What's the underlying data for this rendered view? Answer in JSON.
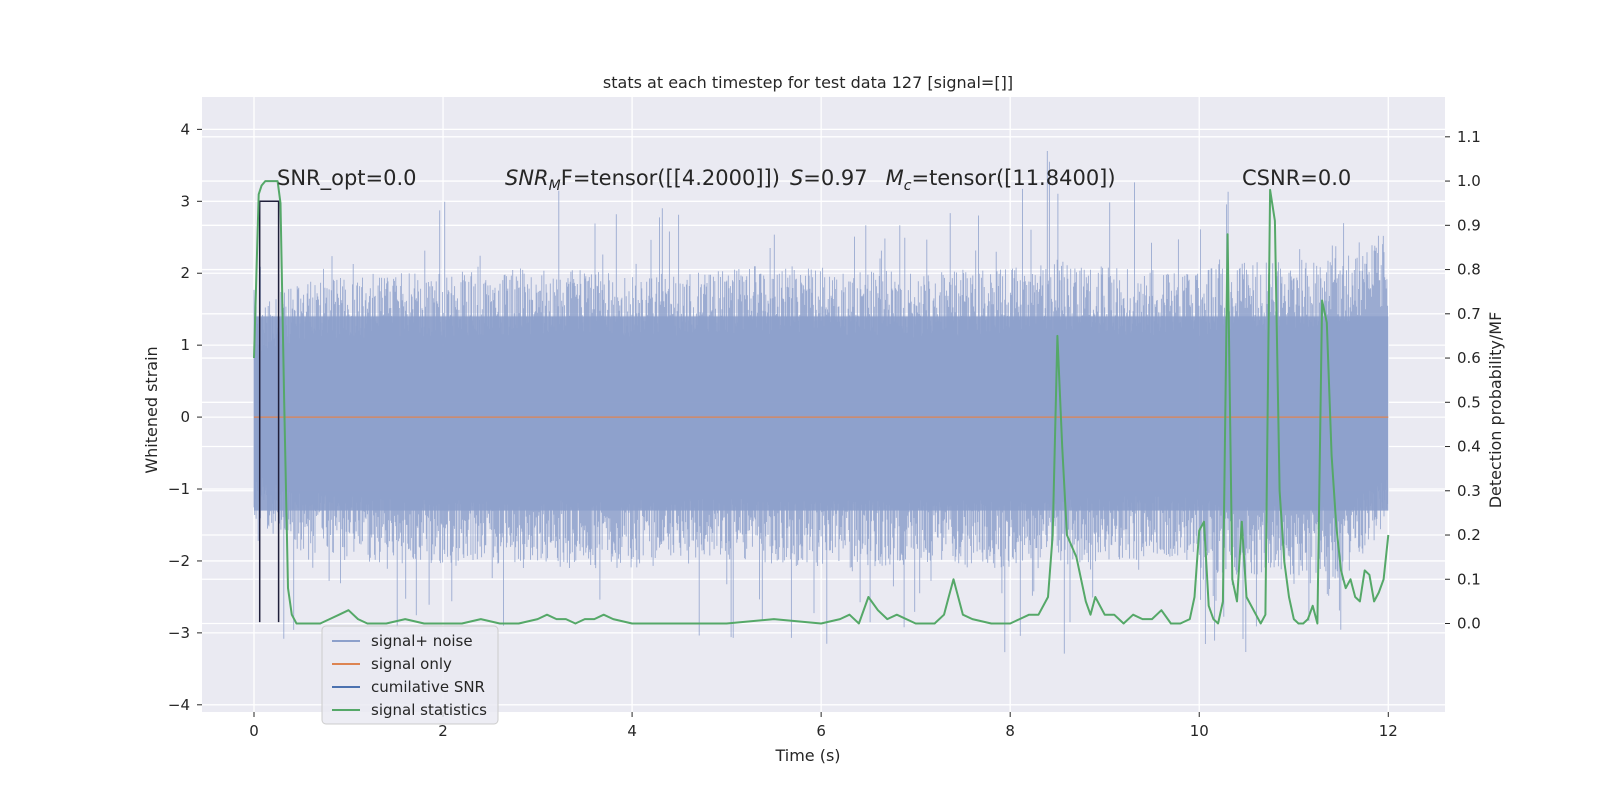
{
  "chart_data": {
    "type": "line",
    "title": "stats at each timestep for test data 127 [signal=[]]",
    "xlabel": "Time (s)",
    "ylabel_left": "Whitened strain",
    "ylabel_right": "Detection probability/MF",
    "xlim": [
      -0.55,
      12.6
    ],
    "ylim_left": [
      -4.1,
      4.45
    ],
    "ylim_right": [
      -0.2,
      1.19
    ],
    "xticks": [
      0,
      2,
      4,
      6,
      8,
      10,
      12
    ],
    "xtick_labels": [
      "0",
      "2",
      "4",
      "6",
      "8",
      "10",
      "12"
    ],
    "yticks_left": [
      -4,
      -3,
      -2,
      -1,
      0,
      1,
      2,
      3,
      4
    ],
    "ytick_labels_left": [
      "−4",
      "−3",
      "−2",
      "−1",
      "0",
      "1",
      "2",
      "3",
      "4"
    ],
    "yticks_right": [
      0.0,
      0.1,
      0.2,
      0.3,
      0.4,
      0.5,
      0.6,
      0.7,
      0.8,
      0.9,
      1.0,
      1.1
    ],
    "ytick_labels_right": [
      "0.0",
      "0.1",
      "0.2",
      "0.3",
      "0.4",
      "0.5",
      "0.6",
      "0.7",
      "0.8",
      "0.9",
      "1.0",
      "1.1"
    ],
    "grid": true,
    "legend_position": "lower-left",
    "annotations": {
      "snr_opt": "SNR_opt=0.0",
      "snr_mf_prefix": "SNR",
      "snr_mf_sub": "M",
      "snr_mf_rest": "F=tensor([[4.2000]])",
      "s_label": "S",
      "s_value": "=0.97",
      "mc_label": "M",
      "mc_sub": "c",
      "mc_value": "=tensor([11.8400])",
      "csnr": "CSNR=0.0"
    },
    "colors": {
      "background": "#eaeaf2",
      "grid": "#ffffff",
      "noise": "#8da0cb",
      "signal_only": "#dd8452",
      "cumulative_snr": "#1f1f3a",
      "signal_statistics": "#55a868"
    },
    "series": [
      {
        "name": "signal+ noise",
        "axis": "left",
        "envelope": {
          "t": [
            0,
            0.3,
            1,
            2,
            3,
            4,
            5,
            6,
            7,
            8,
            8.5,
            9,
            10,
            10.2,
            11,
            11.5,
            12
          ],
          "typical_upper": [
            1.6,
            1.8,
            2.0,
            2.0,
            2.1,
            2.0,
            2.1,
            2.1,
            2.0,
            2.1,
            2.2,
            2.1,
            2.0,
            2.2,
            2.2,
            2.3,
            2.6
          ],
          "typical_lower": [
            -1.4,
            -1.8,
            -2.0,
            -2.1,
            -2.1,
            -2.1,
            -2.0,
            -2.1,
            -2.1,
            -2.1,
            -2.1,
            -2.0,
            -2.0,
            -2.2,
            -2.2,
            -2.3,
            -1.5
          ],
          "max": [
            1.8,
            4.1,
            3.2,
            3.0,
            3.2,
            3.0,
            2.9,
            3.0,
            3.0,
            2.9,
            3.95,
            3.0,
            4.0,
            3.2,
            3.2,
            3.1,
            2.9
          ],
          "min": [
            -2.1,
            -3.3,
            -3.0,
            -3.0,
            -3.1,
            -3.4,
            -3.1,
            -3.2,
            -3.3,
            -3.3,
            -3.7,
            -3.1,
            -3.2,
            -3.3,
            -3.3,
            -3.1,
            -2.5
          ]
        },
        "fill_band": [
          -1.3,
          1.4
        ]
      },
      {
        "name": "signal only",
        "axis": "left",
        "x": [
          0,
          12
        ],
        "y": [
          0,
          0
        ]
      },
      {
        "name": "cumilative SNR",
        "axis": "left",
        "x": [
          0.06,
          0.06,
          0.26,
          0.26
        ],
        "y": [
          -2.85,
          3.0,
          3.0,
          -2.85
        ]
      },
      {
        "name": "signal statistics",
        "axis": "right",
        "x": [
          0.0,
          0.05,
          0.08,
          0.12,
          0.15,
          0.2,
          0.25,
          0.28,
          0.32,
          0.36,
          0.4,
          0.45,
          0.5,
          0.6,
          0.7,
          0.8,
          0.9,
          1.0,
          1.1,
          1.2,
          1.4,
          1.6,
          1.8,
          2.0,
          2.2,
          2.4,
          2.6,
          2.8,
          3.0,
          3.1,
          3.2,
          3.3,
          3.4,
          3.5,
          3.6,
          3.7,
          3.8,
          4.0,
          4.5,
          5.0,
          5.5,
          6.0,
          6.2,
          6.3,
          6.4,
          6.5,
          6.6,
          6.7,
          6.8,
          7.0,
          7.2,
          7.3,
          7.35,
          7.4,
          7.45,
          7.5,
          7.6,
          7.8,
          8.0,
          8.1,
          8.2,
          8.3,
          8.4,
          8.45,
          8.5,
          8.55,
          8.6,
          8.7,
          8.75,
          8.8,
          8.85,
          8.9,
          9.0,
          9.1,
          9.2,
          9.3,
          9.4,
          9.5,
          9.6,
          9.7,
          9.8,
          9.9,
          9.95,
          10.0,
          10.05,
          10.1,
          10.15,
          10.2,
          10.25,
          10.3,
          10.35,
          10.4,
          10.45,
          10.5,
          10.6,
          10.65,
          10.7,
          10.75,
          10.8,
          10.85,
          10.9,
          10.95,
          11.0,
          11.05,
          11.1,
          11.15,
          11.2,
          11.25,
          11.3,
          11.35,
          11.4,
          11.45,
          11.5,
          11.55,
          11.6,
          11.65,
          11.7,
          11.75,
          11.8,
          11.85,
          11.9,
          11.95,
          12.0
        ],
        "y": [
          0.6,
          0.97,
          0.99,
          1.0,
          1.0,
          1.0,
          1.0,
          0.95,
          0.5,
          0.08,
          0.02,
          0.0,
          0.0,
          0.0,
          0.0,
          0.01,
          0.02,
          0.03,
          0.01,
          0.0,
          0.0,
          0.01,
          0.0,
          0.0,
          0.0,
          0.01,
          0.0,
          0.0,
          0.01,
          0.02,
          0.01,
          0.01,
          0.0,
          0.01,
          0.01,
          0.02,
          0.01,
          0.0,
          0.0,
          0.0,
          0.01,
          0.0,
          0.01,
          0.02,
          0.0,
          0.06,
          0.03,
          0.01,
          0.02,
          0.0,
          0.0,
          0.02,
          0.06,
          0.1,
          0.06,
          0.02,
          0.01,
          0.0,
          0.0,
          0.01,
          0.02,
          0.02,
          0.06,
          0.2,
          0.65,
          0.4,
          0.2,
          0.15,
          0.1,
          0.05,
          0.02,
          0.06,
          0.02,
          0.02,
          0.0,
          0.02,
          0.01,
          0.01,
          0.03,
          0.0,
          0.0,
          0.01,
          0.06,
          0.21,
          0.23,
          0.04,
          0.01,
          0.0,
          0.05,
          0.88,
          0.1,
          0.05,
          0.23,
          0.06,
          0.02,
          0.0,
          0.02,
          0.98,
          0.91,
          0.3,
          0.14,
          0.06,
          0.01,
          0.0,
          0.0,
          0.01,
          0.04,
          0.0,
          0.73,
          0.68,
          0.38,
          0.22,
          0.12,
          0.08,
          0.1,
          0.06,
          0.05,
          0.12,
          0.11,
          0.05,
          0.07,
          0.1,
          0.2
        ]
      }
    ]
  }
}
